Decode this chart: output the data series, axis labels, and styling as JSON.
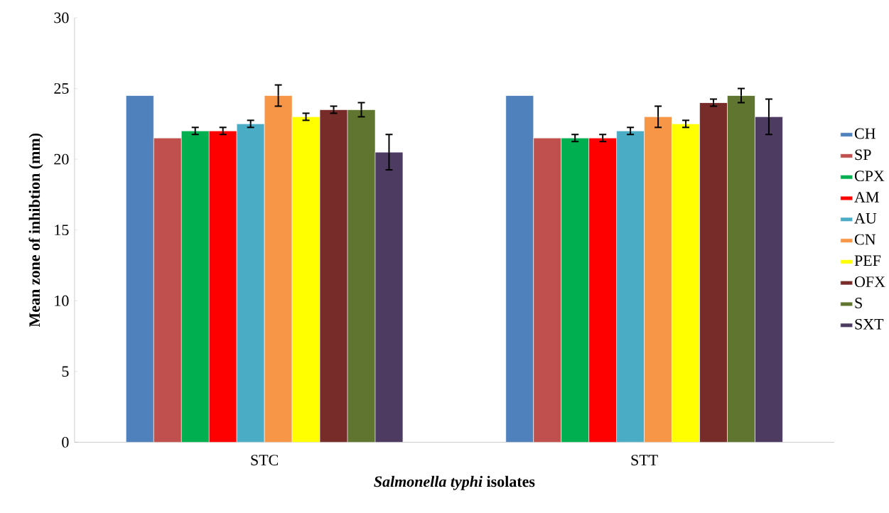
{
  "chart_data": {
    "type": "bar",
    "xlabel": "*Salmonella typhi* isolates",
    "ylabel": "Mean zone of inhibtion  (mm)",
    "categories": [
      "STC",
      "STT"
    ],
    "series": [
      {
        "name": "CH",
        "color": "#4f81bd",
        "values": [
          24.5,
          24.5
        ]
      },
      {
        "name": "SP",
        "color": "#c0504d",
        "values": [
          21.5,
          21.5
        ]
      },
      {
        "name": "CPX",
        "color": "#00b050",
        "values": [
          22,
          21.5
        ],
        "errors": [
          0.25,
          0.25
        ]
      },
      {
        "name": "AM",
        "color": "#ff0000",
        "values": [
          22,
          21.5
        ],
        "errors": [
          0.25,
          0.25
        ]
      },
      {
        "name": "AU",
        "color": "#4bacc6",
        "values": [
          22.5,
          22
        ],
        "errors": [
          0.25,
          0.25
        ]
      },
      {
        "name": "CN",
        "color": "#f79646",
        "values": [
          24.5,
          23
        ],
        "errors": [
          0.75,
          0.75
        ]
      },
      {
        "name": "PEF",
        "color": "#ffff00",
        "values": [
          23,
          22.5
        ],
        "errors": [
          0.25,
          0.25
        ]
      },
      {
        "name": "OFX",
        "color": "#772c2a",
        "values": [
          23.5,
          24
        ],
        "errors": [
          0.25,
          0.25
        ]
      },
      {
        "name": "S",
        "color": "#5f7530",
        "values": [
          23.5,
          24.5
        ],
        "errors": [
          0.5,
          0.5
        ]
      },
      {
        "name": "SXT",
        "color": "#4d3b62",
        "values": [
          20.5,
          23
        ],
        "errors": [
          1.25,
          1.25
        ]
      }
    ],
    "ylim": [
      0,
      30
    ],
    "yticks": [
      0,
      5,
      10,
      15,
      20,
      25,
      30
    ],
    "legend": "right",
    "grid": false
  }
}
